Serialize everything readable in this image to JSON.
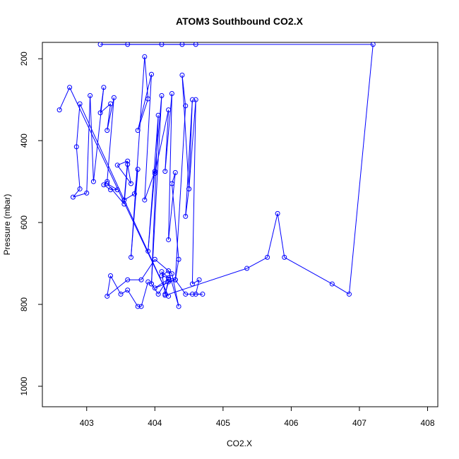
{
  "chart_data": {
    "type": "line",
    "title": "ATOM3 Southbound CO2.X",
    "xlabel": "CO2.X",
    "ylabel": "Pressure (mbar)",
    "xlim": [
      402.35,
      408.15
    ],
    "ylim": [
      1050,
      160
    ],
    "y_reversed": true,
    "x_ticks": [
      403,
      404,
      405,
      406,
      407,
      408
    ],
    "y_ticks": [
      200,
      400,
      600,
      800,
      1000
    ],
    "grid": false,
    "marker": "open-circle",
    "series_color": "#0000ff",
    "series": [
      {
        "x": [
          402.6,
          402.75,
          404.2,
          402.9,
          402.85,
          402.9,
          402.8,
          403.0,
          403.05,
          403.1,
          403.25,
          403.2,
          403.35,
          403.3,
          403.4,
          403.3,
          403.25,
          403.35,
          403.45,
          403.3,
          403.55,
          403.6,
          403.65,
          403.45,
          403.6,
          403.55,
          403.7,
          403.75,
          403.65,
          403.85,
          403.9,
          403.75,
          403.95,
          403.85,
          404.0,
          403.9,
          404.05,
          403.95,
          404.1,
          404.0,
          404.2,
          404.15,
          404.25,
          404.2,
          404.3,
          404.25,
          404.35,
          404.3,
          404.45,
          404.4,
          404.5,
          404.45,
          404.55,
          404.5,
          404.6,
          404.55,
          404.65,
          404.6,
          404.7,
          404.55,
          404.45,
          404.3,
          404.2,
          404.15,
          404.1,
          404.2,
          404.05,
          403.95,
          403.9,
          403.8,
          403.75,
          403.6,
          403.5,
          403.35,
          403.3,
          403.6,
          403.8,
          404.0,
          404.25,
          404.35,
          404.2,
          404.1,
          404.3,
          404.0,
          404.2,
          404.15,
          405.35,
          405.65,
          405.8,
          405.9,
          406.6,
          406.85,
          407.2,
          403.2,
          403.6,
          404.1,
          404.4,
          404.6
        ],
        "y": [
          325,
          270,
          780,
          310,
          415,
          518,
          538,
          528,
          290,
          500,
          270,
          332,
          310,
          375,
          295,
          500,
          508,
          520,
          520,
          505,
          555,
          458,
          505,
          460,
          450,
          545,
          530,
          470,
          685,
          195,
          298,
          375,
          238,
          545,
          475,
          670,
          338,
          750,
          290,
          480,
          325,
          475,
          285,
          642,
          478,
          505,
          690,
          740,
          315,
          240,
          518,
          585,
          300,
          518,
          300,
          750,
          740,
          775,
          775,
          775,
          775,
          740,
          745,
          775,
          720,
          735,
          775,
          750,
          745,
          805,
          805,
          765,
          775,
          730,
          780,
          740,
          740,
          690,
          725,
          805,
          718,
          730,
          740,
          760,
          738,
          778,
          712,
          685,
          578,
          685,
          750,
          775,
          165,
          165,
          165,
          165,
          165,
          165
        ]
      }
    ]
  }
}
